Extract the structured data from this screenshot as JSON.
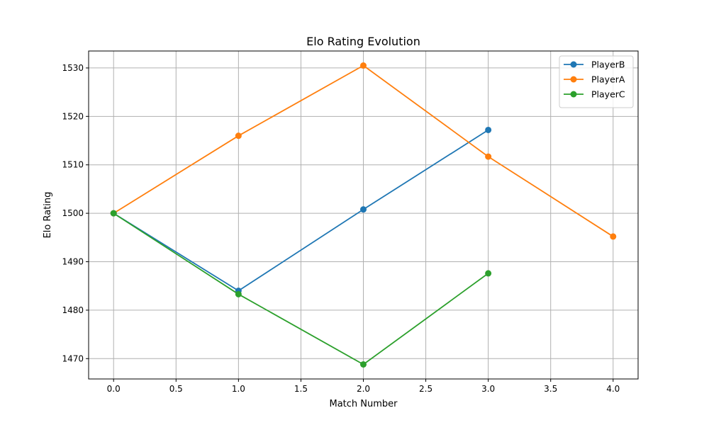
{
  "chart_data": {
    "type": "line",
    "title": "Elo Rating Evolution",
    "xlabel": "Match Number",
    "ylabel": "Elo Rating",
    "xlim": [
      -0.2,
      4.2
    ],
    "ylim": [
      1465.8,
      1533.5
    ],
    "xticks": [
      0.0,
      0.5,
      1.0,
      1.5,
      2.0,
      2.5,
      3.0,
      3.5,
      4.0
    ],
    "xtick_labels": [
      "0.0",
      "0.5",
      "1.0",
      "1.5",
      "2.0",
      "2.5",
      "3.0",
      "3.5",
      "4.0"
    ],
    "yticks": [
      1470,
      1480,
      1490,
      1500,
      1510,
      1520,
      1530
    ],
    "ytick_labels": [
      "1470",
      "1480",
      "1490",
      "1500",
      "1510",
      "1520",
      "1530"
    ],
    "grid": true,
    "legend_position": "top-right",
    "series": [
      {
        "name": "PlayerB",
        "color": "#1f77b4",
        "x": [
          0,
          1,
          2,
          3
        ],
        "y": [
          1500.0,
          1484.0,
          1500.8,
          1517.2
        ]
      },
      {
        "name": "PlayerA",
        "color": "#ff7f0e",
        "x": [
          0,
          1,
          2,
          3,
          4
        ],
        "y": [
          1500.0,
          1516.0,
          1530.5,
          1511.7,
          1495.2
        ]
      },
      {
        "name": "PlayerC",
        "color": "#2ca02c",
        "x": [
          0,
          1,
          2,
          3
        ],
        "y": [
          1500.0,
          1483.3,
          1468.8,
          1487.6
        ]
      }
    ]
  }
}
